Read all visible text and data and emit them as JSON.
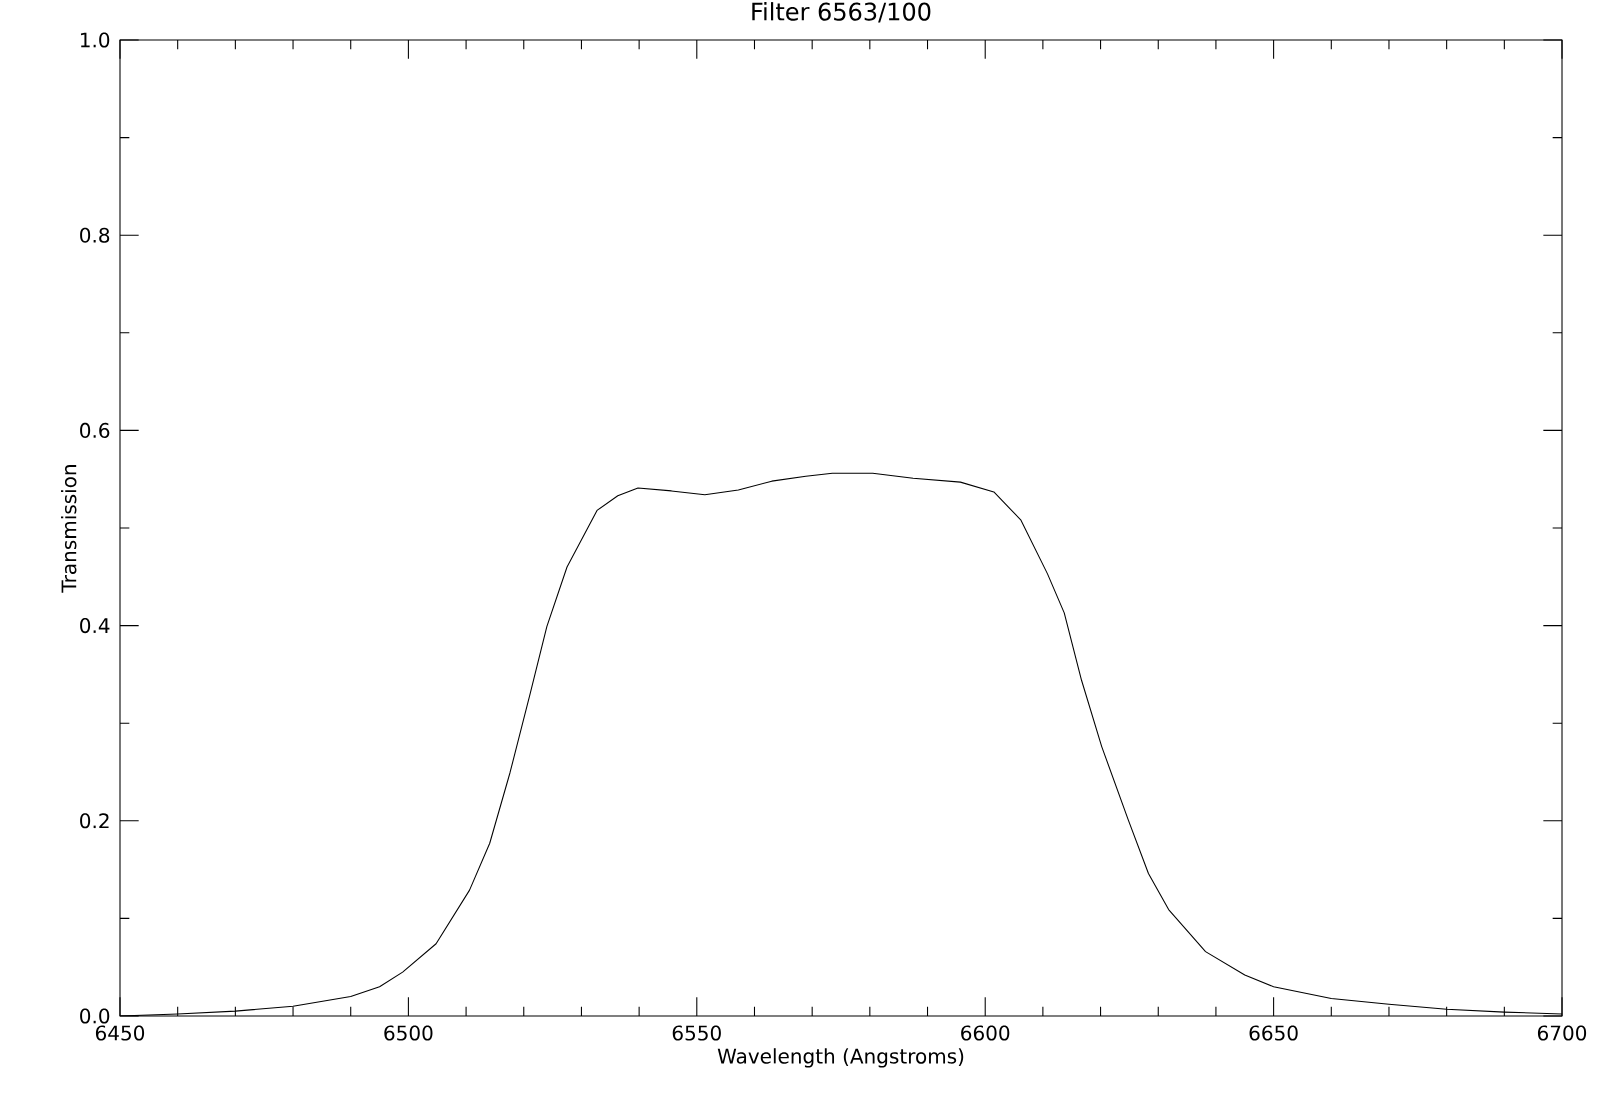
{
  "chart_data": {
    "type": "line",
    "title": "Filter 6563/100",
    "xlabel": "Wavelength (Angstroms)",
    "ylabel": "Transmission",
    "x": [
      6450,
      6460,
      6470,
      6480,
      6490,
      6495,
      6499,
      6504.8,
      6510.6,
      6514.1,
      6517.6,
      6521.1,
      6524,
      6527.5,
      6532.7,
      6536.3,
      6539.8,
      6545.6,
      6551.4,
      6557.2,
      6563,
      6568.9,
      6573.5,
      6580.5,
      6587.5,
      6595.7,
      6601.5,
      6606.2,
      6610.8,
      6613.7,
      6616.7,
      6620.2,
      6624.8,
      6628.3,
      6631.8,
      6638.2,
      6645,
      6650,
      6660,
      6670,
      6680,
      6690,
      6700
    ],
    "series": [
      {
        "color": "#000000",
        "values": [
          0.0,
          0.002,
          0.005,
          0.01,
          0.02,
          0.03,
          0.045,
          0.074,
          0.129,
          0.177,
          0.249,
          0.33,
          0.399,
          0.46,
          0.518,
          0.533,
          0.541,
          0.538,
          0.534,
          0.539,
          0.548,
          0.553,
          0.556,
          0.556,
          0.551,
          0.547,
          0.537,
          0.508,
          0.453,
          0.413,
          0.344,
          0.276,
          0.201,
          0.146,
          0.109,
          0.066,
          0.042,
          0.03,
          0.018,
          0.012,
          0.007,
          0.004,
          0.002
        ]
      }
    ],
    "xlim": [
      6450,
      6700
    ],
    "ylim": [
      0,
      1
    ],
    "xticks": [
      6450,
      6500,
      6550,
      6600,
      6650,
      6700
    ],
    "yticks": [
      {
        "value": 0,
        "label": "0.0"
      },
      {
        "value": 0.2,
        "label": "0.2"
      },
      {
        "value": 0.4,
        "label": "0.4"
      },
      {
        "value": 0.6,
        "label": "0.6"
      },
      {
        "value": 0.8,
        "label": "0.8"
      },
      {
        "value": 1,
        "label": "1.0"
      }
    ],
    "grid": false,
    "marker": "none",
    "line_style": "solid"
  }
}
